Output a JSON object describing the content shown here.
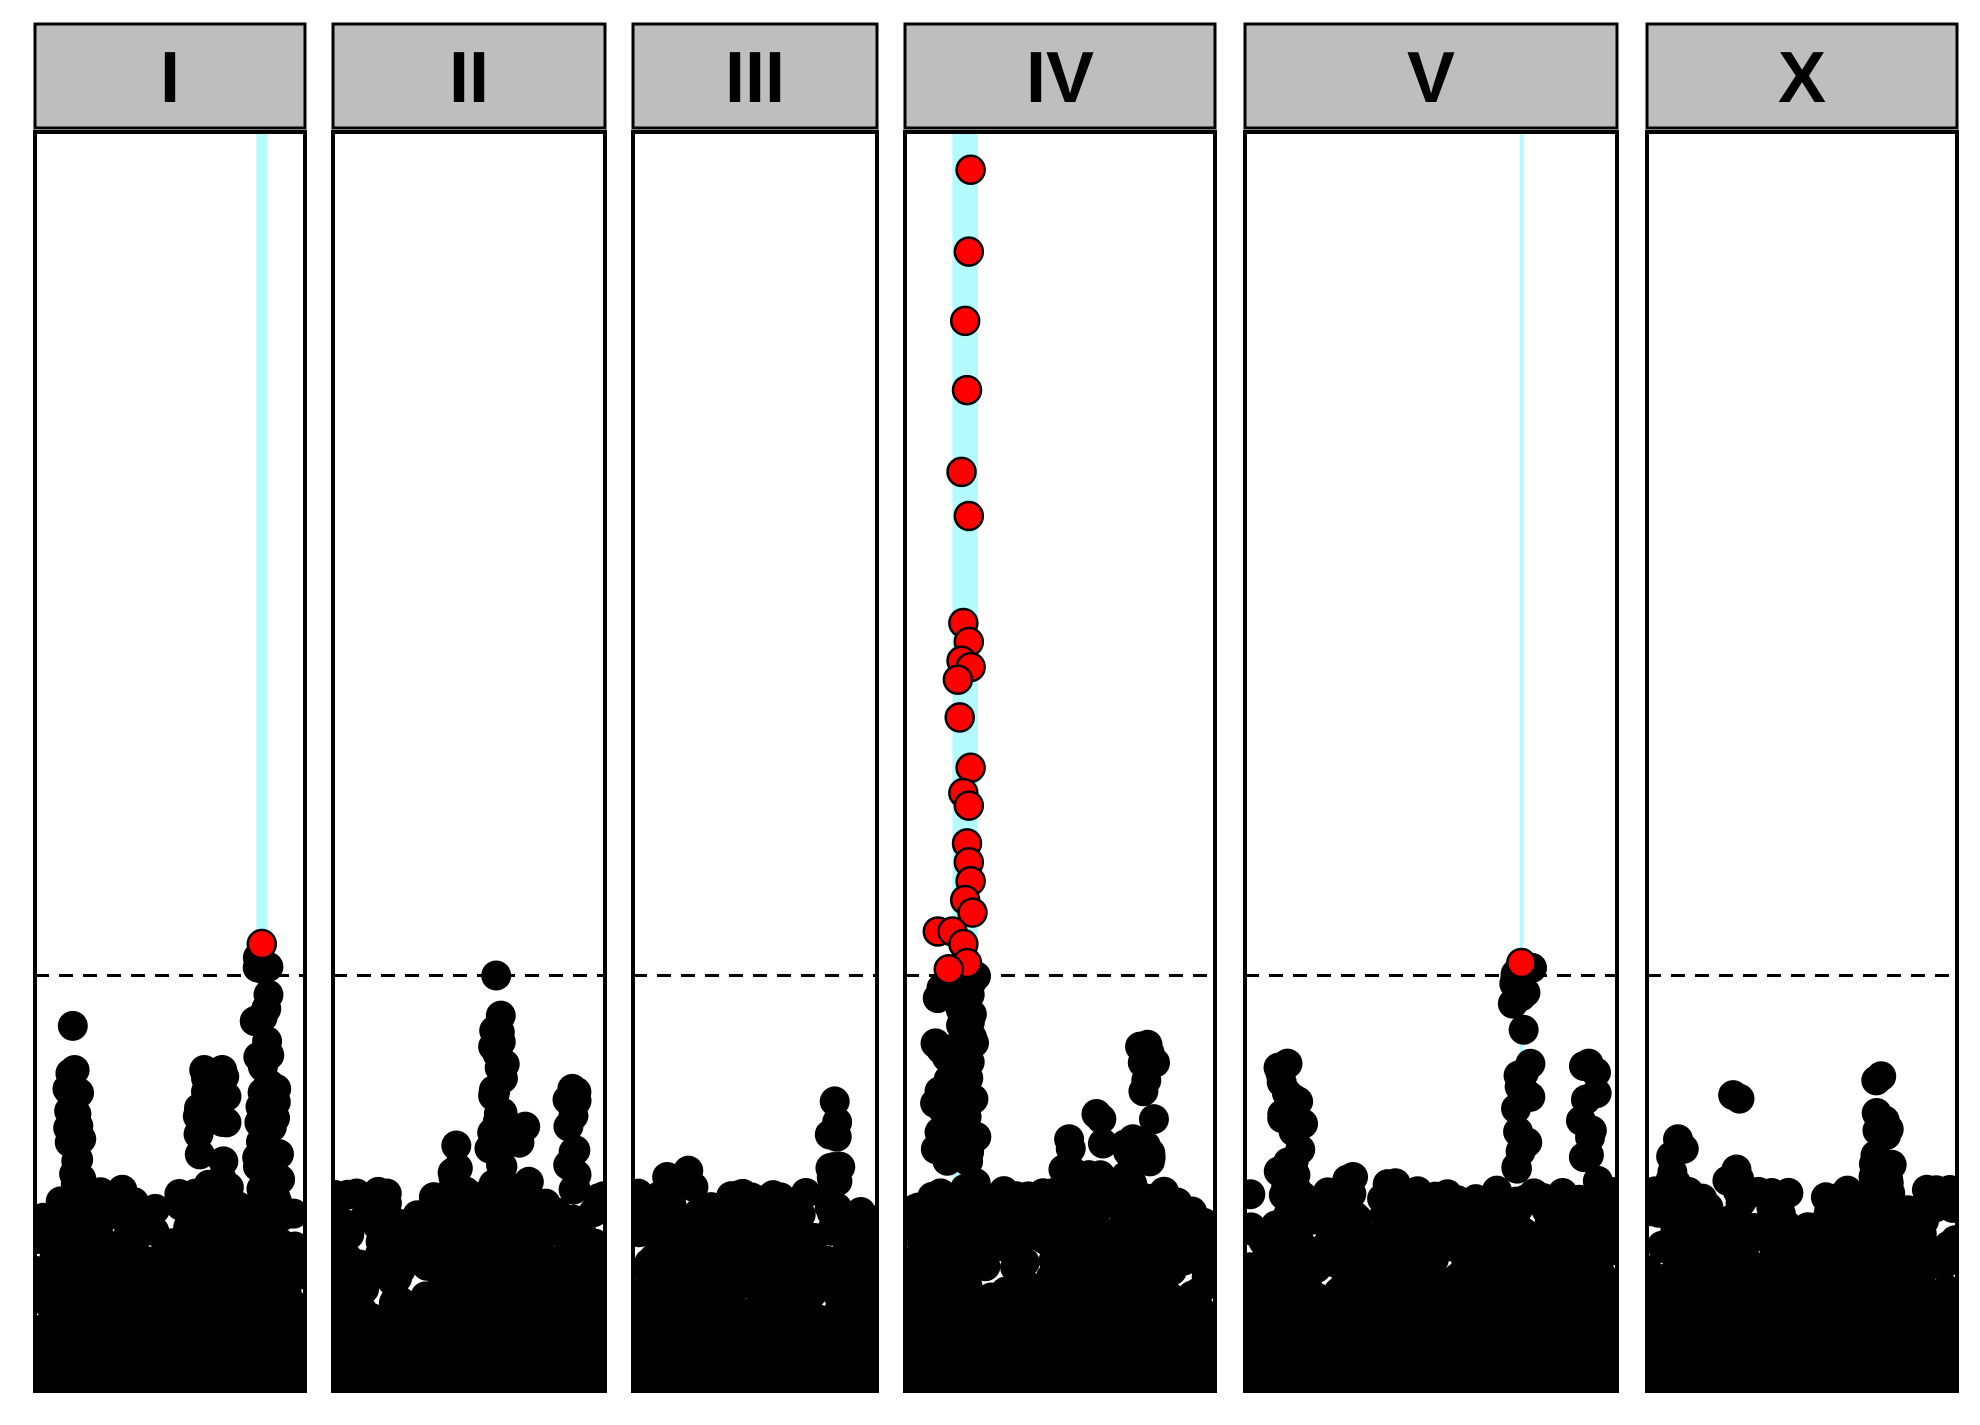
{
  "chart_data": {
    "type": "scatter",
    "title": "",
    "xlabel": "",
    "ylabel": "",
    "ylim": [
      0,
      10
    ],
    "threshold": 3.3,
    "grid": false,
    "legend": "none",
    "colors": {
      "significant": "#ff0000",
      "background_points": "#000000",
      "highlight_band": "#b3fbfd",
      "strip_fill": "#bebebe"
    },
    "panels": [
      {
        "label": "I",
        "xlim": [
          0,
          15
        ],
        "highlight": [
          12.3,
          12.9
        ],
        "significant": [
          {
            "x": 12.6,
            "y": 3.55
          }
        ],
        "peaks": [
          {
            "x": 2.1,
            "y": 2.9
          },
          {
            "x": 2.2,
            "y": 2.55
          },
          {
            "x": 2.3,
            "y": 2.2
          },
          {
            "x": 3.6,
            "y": 1.45
          },
          {
            "x": 5.5,
            "y": 1.5
          },
          {
            "x": 9.4,
            "y": 2.55
          },
          {
            "x": 10.4,
            "y": 2.55
          },
          {
            "x": 12.9,
            "y": 2.7
          },
          {
            "x": 13.4,
            "y": 2.4
          }
        ]
      },
      {
        "label": "II",
        "xlim": [
          0,
          15
        ],
        "highlight": null,
        "significant": [],
        "peaks": [
          {
            "x": 9.0,
            "y": 3.3
          },
          {
            "x": 9.2,
            "y": 2.85
          },
          {
            "x": 10.6,
            "y": 2.1
          },
          {
            "x": 13.2,
            "y": 2.4
          },
          {
            "x": 6.8,
            "y": 1.95
          }
        ]
      },
      {
        "label": "III",
        "xlim": [
          0,
          15
        ],
        "highlight": null,
        "significant": [],
        "peaks": [
          {
            "x": 12.4,
            "y": 2.3
          },
          {
            "x": 3.4,
            "y": 1.75
          },
          {
            "x": 2.1,
            "y": 1.7
          }
        ]
      },
      {
        "label": "IV",
        "xlim": [
          0,
          17
        ],
        "highlight": [
          2.6,
          4.0
        ],
        "significant": [
          {
            "x": 3.6,
            "y": 9.7
          },
          {
            "x": 3.5,
            "y": 9.05
          },
          {
            "x": 3.3,
            "y": 8.5
          },
          {
            "x": 3.4,
            "y": 7.95
          },
          {
            "x": 3.1,
            "y": 7.3
          },
          {
            "x": 3.5,
            "y": 6.95
          },
          {
            "x": 3.2,
            "y": 6.1
          },
          {
            "x": 3.5,
            "y": 5.95
          },
          {
            "x": 3.1,
            "y": 5.8
          },
          {
            "x": 3.6,
            "y": 5.75
          },
          {
            "x": 2.9,
            "y": 5.65
          },
          {
            "x": 3.0,
            "y": 5.35
          },
          {
            "x": 3.6,
            "y": 4.95
          },
          {
            "x": 3.2,
            "y": 4.75
          },
          {
            "x": 3.5,
            "y": 4.65
          },
          {
            "x": 3.4,
            "y": 4.35
          },
          {
            "x": 3.5,
            "y": 4.2
          },
          {
            "x": 3.6,
            "y": 4.05
          },
          {
            "x": 3.3,
            "y": 3.9
          },
          {
            "x": 3.7,
            "y": 3.8
          },
          {
            "x": 1.8,
            "y": 3.65
          },
          {
            "x": 2.6,
            "y": 3.65
          },
          {
            "x": 3.2,
            "y": 3.55
          },
          {
            "x": 3.4,
            "y": 3.4
          },
          {
            "x": 2.4,
            "y": 3.35
          }
        ],
        "peaks": [
          {
            "x": 3.5,
            "y": 3.3
          },
          {
            "x": 2.0,
            "y": 3.2
          },
          {
            "x": 13.3,
            "y": 2.75
          },
          {
            "x": 10.5,
            "y": 2.2
          },
          {
            "x": 9.0,
            "y": 2.0
          },
          {
            "x": 12.5,
            "y": 2.0
          }
        ]
      },
      {
        "label": "V",
        "xlim": [
          0,
          21
        ],
        "highlight": [
          15.5,
          15.7
        ],
        "significant": [
          {
            "x": 15.6,
            "y": 3.4
          }
        ],
        "peaks": [
          {
            "x": 2.4,
            "y": 2.6
          },
          {
            "x": 3.0,
            "y": 2.3
          },
          {
            "x": 19.4,
            "y": 2.6
          },
          {
            "x": 8.5,
            "y": 1.65
          },
          {
            "x": 6.1,
            "y": 1.7
          }
        ]
      },
      {
        "label": "X",
        "xlim": [
          0,
          18
        ],
        "highlight": null,
        "significant": [],
        "peaks": [
          {
            "x": 13.6,
            "y": 2.5
          },
          {
            "x": 5.0,
            "y": 2.35
          },
          {
            "x": 13.8,
            "y": 2.15
          },
          {
            "x": 1.8,
            "y": 2.0
          },
          {
            "x": 9.8,
            "y": 1.3
          }
        ]
      }
    ]
  }
}
